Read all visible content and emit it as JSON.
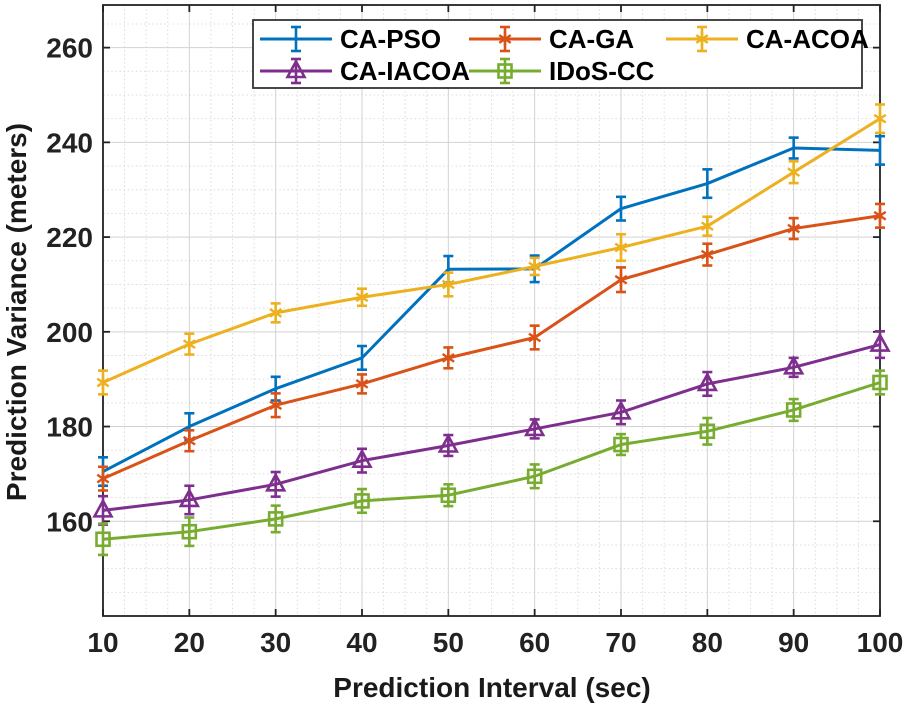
{
  "figure": {
    "background": "#ffffff",
    "frame_color": "#222222",
    "major_grid_color": "#d2d2d2",
    "minor_grid_color": "#dcdcdc",
    "text_color": "#222222"
  },
  "chart_data": {
    "type": "line",
    "title": "",
    "xlabel": "Prediction Interval (sec)",
    "ylabel": "Prediction Variance (meters)",
    "x": [
      10,
      20,
      30,
      40,
      50,
      60,
      70,
      80,
      90,
      100
    ],
    "xlim": [
      10,
      100
    ],
    "ylim": [
      140,
      269
    ],
    "xticks": [
      10,
      20,
      30,
      40,
      50,
      60,
      70,
      80,
      90,
      100
    ],
    "yticks": [
      160,
      180,
      200,
      220,
      240,
      260
    ],
    "x_minor_step": 2.5,
    "y_minor_step": 5,
    "grid": "major solid + minor dotted",
    "legend_position": "top inside, 2 rows, boxed",
    "series": [
      {
        "name": "CA-PSO",
        "color": "#0072BD",
        "marker": "none",
        "values": [
          170.5,
          180,
          188,
          194.5,
          213.2,
          213.3,
          226,
          231.3,
          238.8,
          238.3
        ],
        "errors": [
          3,
          2.8,
          2.5,
          2.5,
          2.8,
          2.8,
          2.5,
          3,
          2.2,
          3
        ]
      },
      {
        "name": "CA-GA",
        "color": "#D95319",
        "marker": "asterisk",
        "values": [
          169,
          177,
          184.5,
          189,
          194.5,
          198.8,
          211,
          216.3,
          221.8,
          224.5
        ],
        "errors": [
          2.5,
          2.2,
          2.5,
          2,
          2.2,
          2.5,
          2.6,
          2.3,
          2.2,
          2.5
        ]
      },
      {
        "name": "CA-ACOA",
        "color": "#EDB120",
        "marker": "asterisk",
        "values": [
          189.3,
          197.4,
          204,
          207.3,
          210,
          213.8,
          217.8,
          222.3,
          233.7,
          245
        ],
        "errors": [
          2.5,
          2.2,
          2,
          1.8,
          2.5,
          1.8,
          2.8,
          2,
          2.3,
          3
        ]
      },
      {
        "name": "CA-IACOA",
        "color": "#7E2F8E",
        "marker": "triangle",
        "values": [
          162.3,
          164.5,
          167.8,
          172.8,
          176,
          179.5,
          183,
          189,
          192.5,
          197.3
        ],
        "errors": [
          3,
          3,
          2.6,
          2.5,
          2.2,
          2,
          2.5,
          2.5,
          2,
          2.8
        ]
      },
      {
        "name": "IDoS-CC",
        "color": "#77AC30",
        "marker": "square",
        "values": [
          156.2,
          157.8,
          160.5,
          164.3,
          165.5,
          169.5,
          176.2,
          179,
          183.5,
          189.3
        ],
        "errors": [
          3.3,
          3,
          2.8,
          2.5,
          2.3,
          2.5,
          2.2,
          2.8,
          2.3,
          2.5
        ]
      }
    ],
    "legend": {
      "rows": [
        [
          "CA-PSO",
          "CA-GA",
          "CA-ACOA"
        ],
        [
          "CA-IACOA",
          "IDoS-CC"
        ]
      ]
    }
  }
}
